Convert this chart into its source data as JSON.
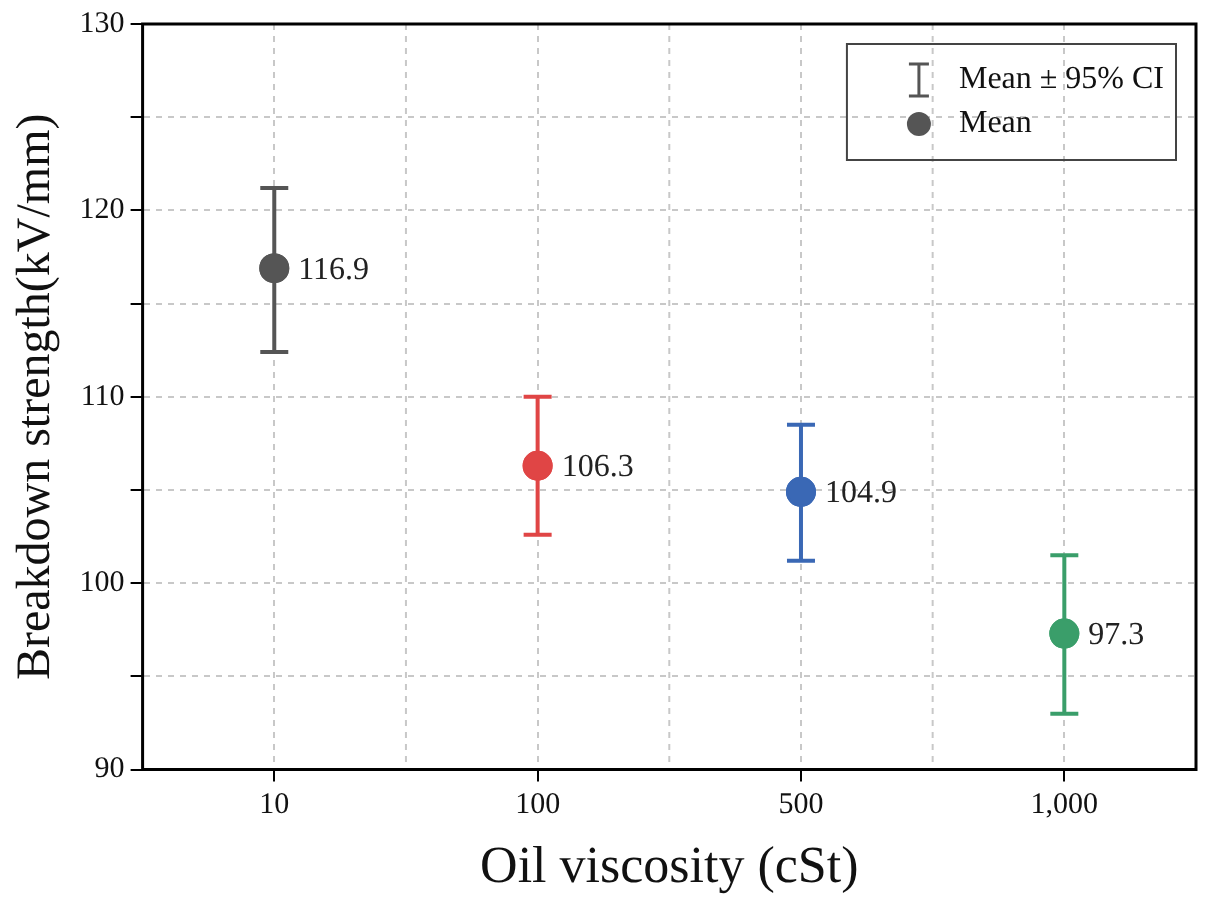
{
  "chart_data": {
    "type": "scatter",
    "xlabel": "Oil viscosity (cSt)",
    "ylabel": "Breakdown strength(kV/mm)",
    "categories": [
      "10",
      "100",
      "500",
      "1,000"
    ],
    "series": [
      {
        "name": "Mean",
        "colors": [
          "#555555",
          "#e04545",
          "#3a68b5",
          "#3a9e6a"
        ],
        "values": [
          116.9,
          106.3,
          104.9,
          97.3
        ],
        "errors": [
          [
            112.4,
            121.2
          ],
          [
            102.6,
            110.0
          ],
          [
            101.2,
            108.5
          ],
          [
            93.0,
            101.5
          ]
        ]
      }
    ],
    "annotations": [
      "Mean ± 95% CI"
    ],
    "ylim": [
      90,
      130
    ],
    "yticks": [
      90,
      {
        "value": 95,
        "label": null
      },
      100,
      {
        "value": 105,
        "label": null
      },
      110,
      {
        "value": 115,
        "label": null
      },
      120,
      {
        "value": 125,
        "label": null
      },
      130
    ],
    "grid": true,
    "legend": "top right",
    "marker": "circle",
    "data_labels": true
  }
}
